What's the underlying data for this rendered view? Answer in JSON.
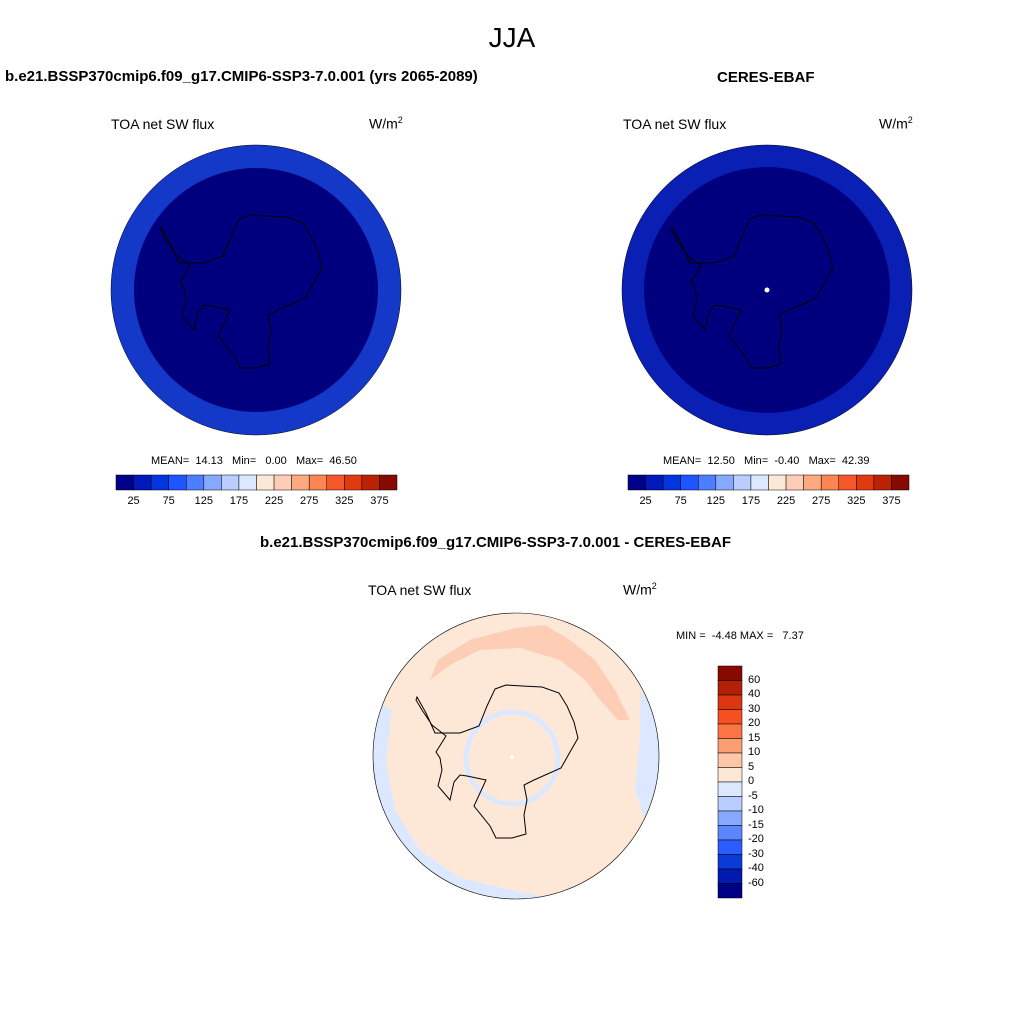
{
  "figure": {
    "title": "JJA"
  },
  "panel_left": {
    "case_title": "b.e21.BSSP370cmip6.f09_g17.CMIP6-SSP3-7.0.001 (yrs 2065-2089)",
    "variable": "TOA net SW flux",
    "units_base": "W/m",
    "units_exp": "2",
    "stats": {
      "mean_label": "MEAN=",
      "mean": "14.13",
      "min_label": "Min=",
      "min": "0.00",
      "max_label": "Max=",
      "max": "46.50"
    },
    "colorbar_labels": [
      "25",
      "75",
      "125",
      "175",
      "225",
      "275",
      "325",
      "375"
    ]
  },
  "panel_right": {
    "case_title": "CERES-EBAF",
    "variable": "TOA net SW flux",
    "units_base": "W/m",
    "units_exp": "2",
    "stats": {
      "mean_label": "MEAN=",
      "mean": "12.50",
      "min_label": "Min=",
      "min": "-0.40",
      "max_label": "Max=",
      "max": "42.39"
    },
    "colorbar_labels": [
      "25",
      "75",
      "125",
      "175",
      "225",
      "275",
      "325",
      "375"
    ]
  },
  "panel_diff": {
    "case_title": "b.e21.BSSP370cmip6.f09_g17.CMIP6-SSP3-7.0.001 - CERES-EBAF",
    "variable": "TOA net SW flux",
    "units_base": "W/m",
    "units_exp": "2",
    "minmax": {
      "min_label": "MIN =",
      "min": "-4.48",
      "max_label": "MAX =",
      "max": "7.37"
    },
    "colorbar_labels": [
      "60",
      "40",
      "30",
      "20",
      "15",
      "10",
      "5",
      "0",
      "-5",
      "-10",
      "-15",
      "-20",
      "-30",
      "-40",
      "-60"
    ]
  },
  "colors": {
    "abs_scale": [
      "#00008a",
      "#0019b8",
      "#0035e0",
      "#1f55ff",
      "#4d7eff",
      "#86a8ff",
      "#b9cdff",
      "#dbe8ff",
      "#fde8d8",
      "#fdcdb5",
      "#fca97f",
      "#fb8654",
      "#f6572a",
      "#e23a10",
      "#bb2203",
      "#870a00"
    ],
    "diff_scale": [
      "#870a00",
      "#b12007",
      "#dd3610",
      "#f64f22",
      "#fb7545",
      "#fc9e74",
      "#fdc6a7",
      "#fde8d8",
      "#dbe8ff",
      "#b9cdff",
      "#86a8ff",
      "#5a86ff",
      "#2a5cff",
      "#0a3ad8",
      "#0019b0",
      "#000085"
    ],
    "polar_dark": "#00007f",
    "polar_ring": "#0a1fb3",
    "diff_main": "#fde8d8",
    "diff_warm": "#fdcdb5",
    "diff_cool": "#dbe8ff"
  }
}
